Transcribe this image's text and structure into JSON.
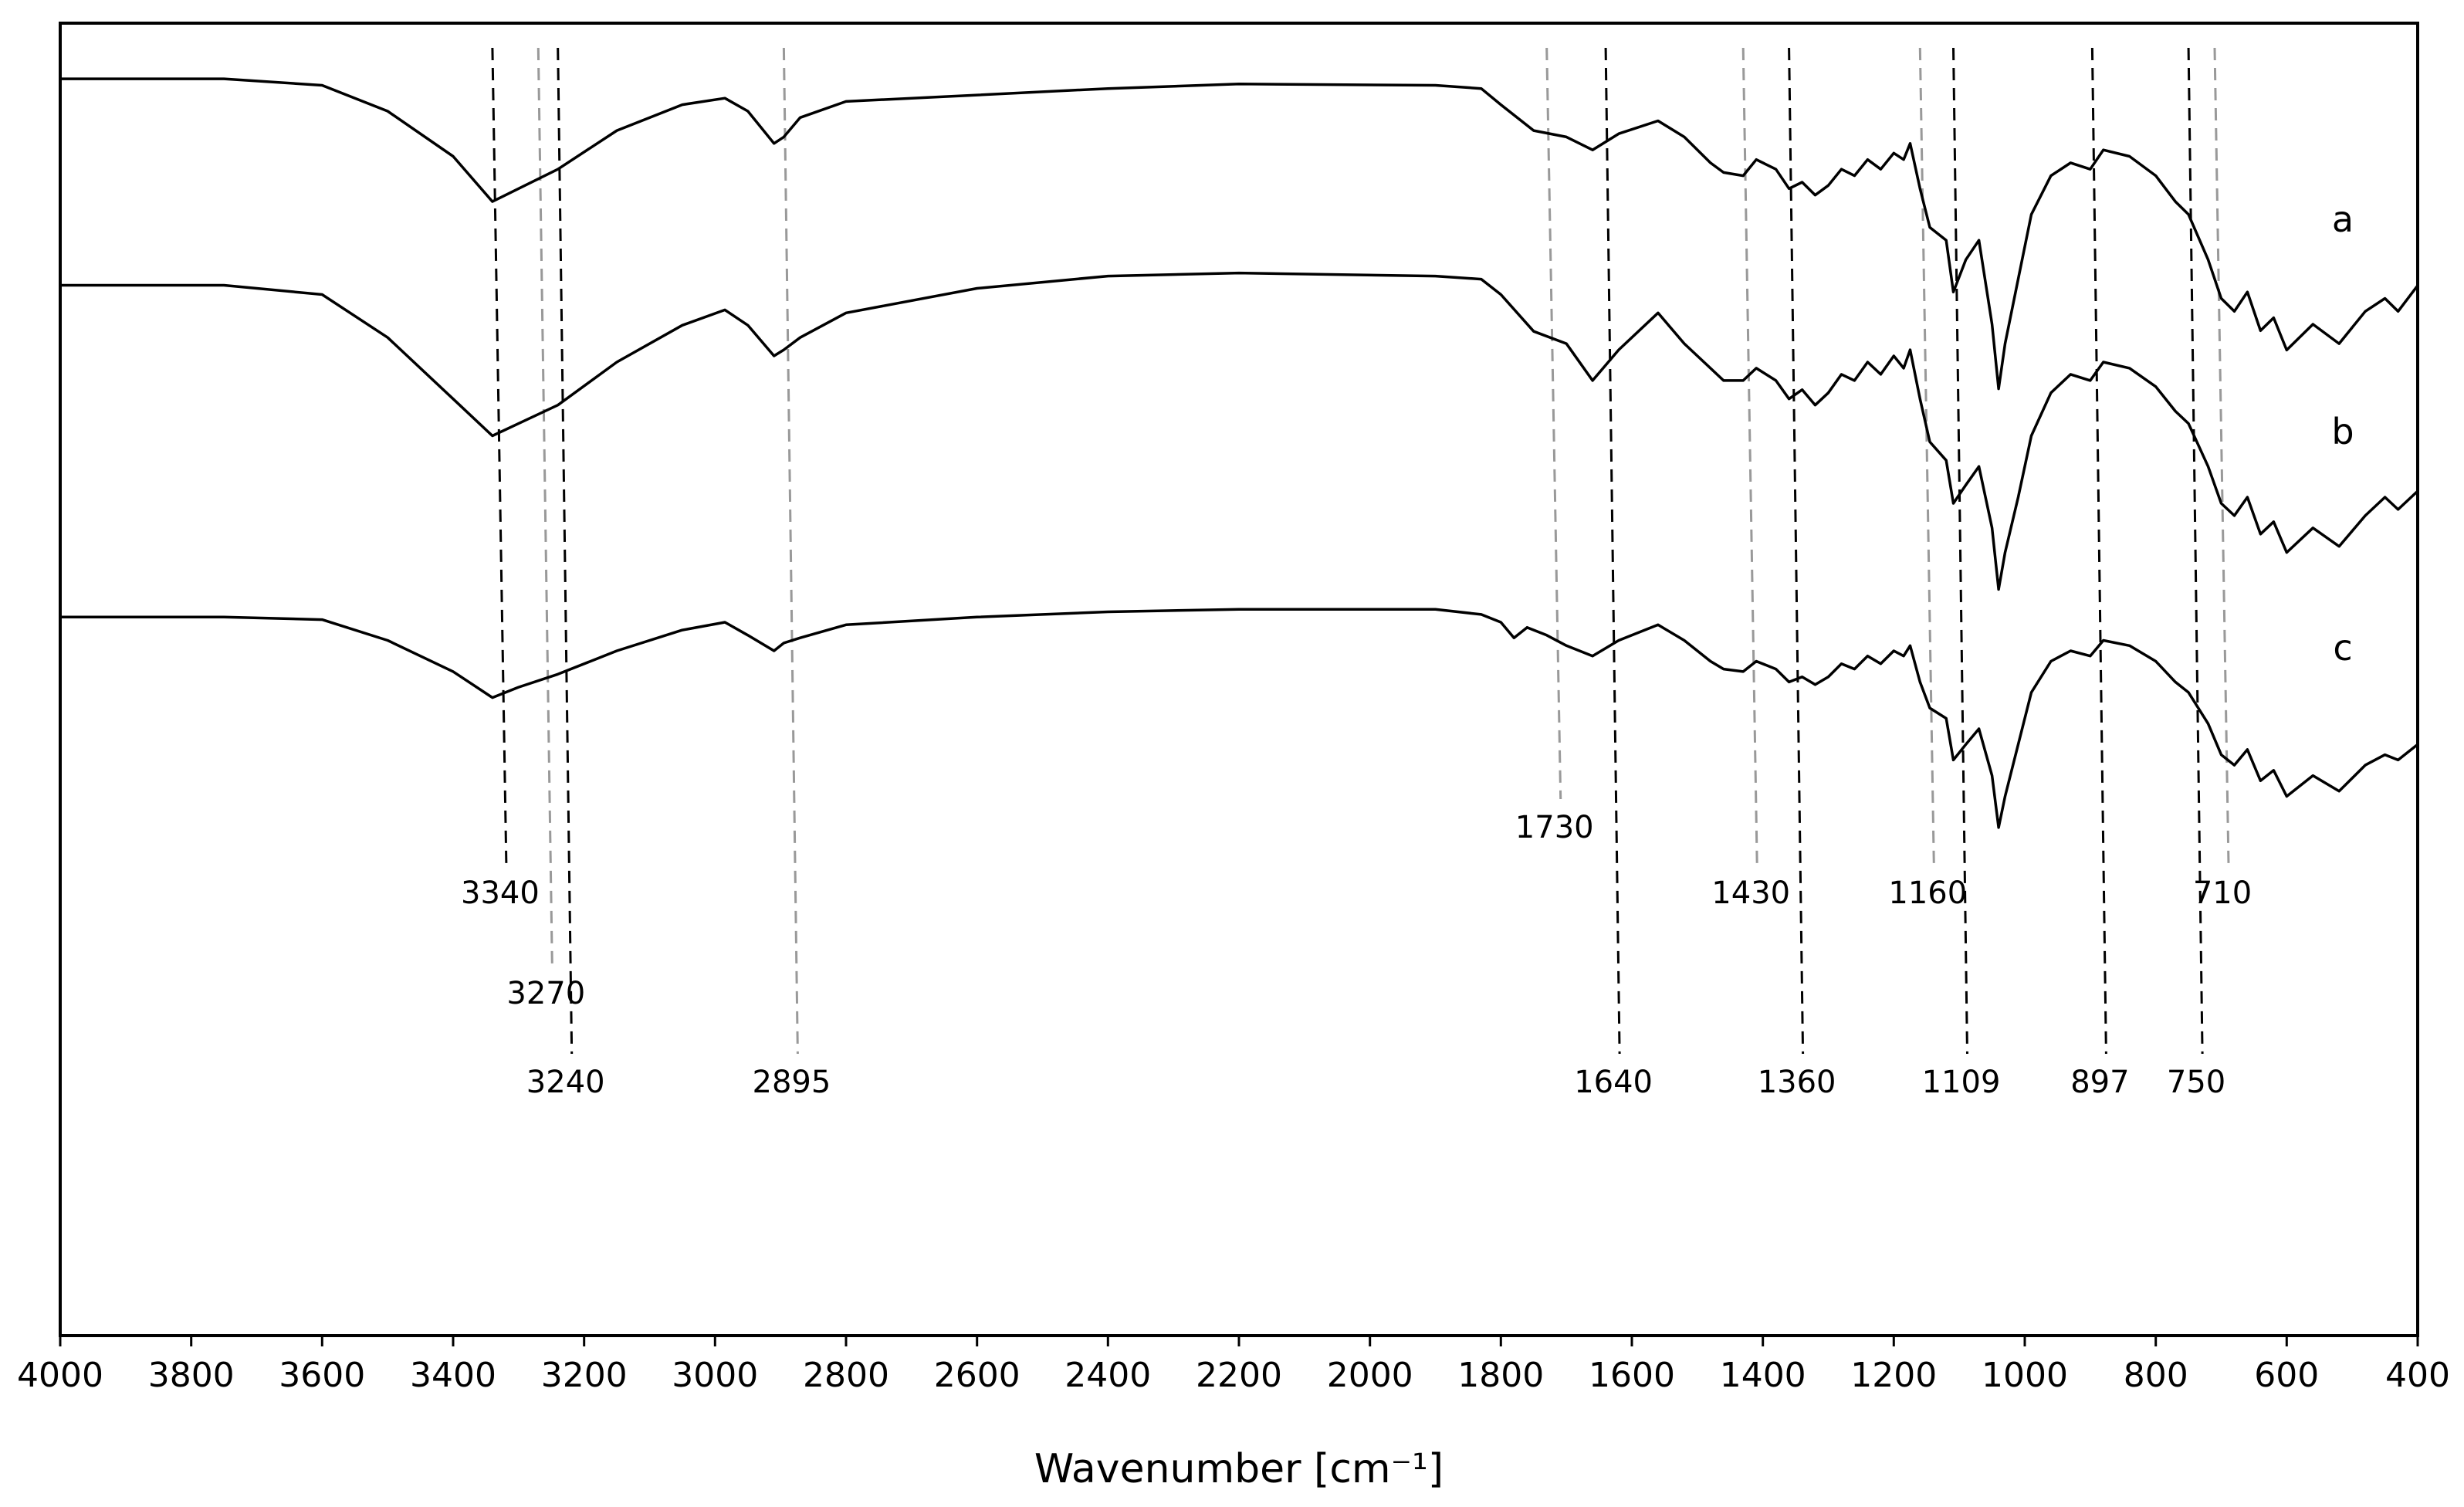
{
  "chart_data": {
    "type": "line",
    "title": "",
    "xlabel": "Wavenumber [cm⁻¹]",
    "ylabel": "",
    "xlim": [
      4000,
      400
    ],
    "x_reversed": true,
    "x_ticks": [
      4000,
      3800,
      3600,
      3400,
      3200,
      3000,
      2800,
      2600,
      2400,
      2200,
      2000,
      1800,
      1600,
      1400,
      1200,
      1000,
      800,
      600,
      400
    ],
    "y_ticks": [],
    "grid": false,
    "legend": "none",
    "series": [
      {
        "name": "a",
        "x": [
          4000,
          3750,
          3600,
          3500,
          3400,
          3340,
          3300,
          3240,
          3150,
          3050,
          2985,
          2950,
          2910,
          2895,
          2870,
          2800,
          2600,
          2400,
          2200,
          1900,
          1830,
          1800,
          1750,
          1700,
          1660,
          1620,
          1560,
          1520,
          1480,
          1460,
          1430,
          1410,
          1380,
          1360,
          1340,
          1320,
          1300,
          1280,
          1260,
          1240,
          1220,
          1200,
          1185,
          1175,
          1160,
          1145,
          1120,
          1109,
          1090,
          1070,
          1050,
          1040,
          1030,
          1010,
          990,
          960,
          930,
          900,
          880,
          840,
          800,
          770,
          750,
          720,
          700,
          680,
          660,
          640,
          620,
          600,
          560,
          520,
          480,
          450,
          430,
          400
        ],
        "y": [
          93.0,
          93.0,
          92.0,
          88.0,
          81.0,
          74.0,
          76.0,
          79.0,
          85.0,
          89.0,
          90.0,
          88.0,
          83.0,
          84.0,
          87.0,
          89.5,
          90.5,
          91.5,
          92.2,
          92.0,
          91.5,
          89.0,
          85.0,
          84.0,
          82.0,
          84.5,
          86.5,
          84.0,
          80.0,
          78.5,
          78.0,
          80.5,
          79.0,
          76.0,
          77.0,
          75.0,
          76.5,
          79.0,
          78.0,
          80.5,
          79.0,
          81.5,
          80.5,
          83.0,
          76.0,
          70.0,
          68.0,
          60.0,
          65.0,
          68.0,
          55.0,
          45.0,
          52.0,
          62.0,
          72.0,
          78.0,
          80.0,
          79.0,
          82.0,
          81.0,
          78.0,
          74.0,
          72.0,
          65.0,
          59.0,
          57.0,
          60.0,
          54.0,
          56.0,
          51.0,
          55.0,
          52.0,
          57.0,
          59.0,
          57.0,
          61.0
        ]
      },
      {
        "name": "b",
        "x": [
          4000,
          3750,
          3600,
          3500,
          3400,
          3340,
          3300,
          3240,
          3150,
          3050,
          2985,
          2950,
          2910,
          2895,
          2870,
          2800,
          2600,
          2400,
          2200,
          1900,
          1830,
          1800,
          1750,
          1700,
          1660,
          1620,
          1560,
          1520,
          1480,
          1460,
          1430,
          1410,
          1380,
          1360,
          1340,
          1320,
          1300,
          1280,
          1260,
          1240,
          1220,
          1200,
          1185,
          1175,
          1160,
          1145,
          1120,
          1109,
          1090,
          1070,
          1050,
          1040,
          1030,
          1010,
          990,
          960,
          930,
          900,
          880,
          840,
          800,
          770,
          750,
          720,
          700,
          680,
          660,
          640,
          620,
          600,
          560,
          520,
          480,
          450,
          430,
          400
        ],
        "y": [
          80.5,
          80.5,
          79.0,
          72.0,
          62.0,
          56.0,
          58.0,
          61.0,
          68.0,
          74.0,
          76.5,
          74.0,
          69.0,
          70.0,
          72.0,
          76.0,
          80.0,
          82.0,
          82.5,
          82.0,
          81.5,
          79.0,
          73.0,
          71.0,
          65.0,
          70.0,
          76.0,
          71.0,
          67.0,
          65.0,
          65.0,
          67.0,
          65.0,
          62.0,
          63.5,
          61.0,
          63.0,
          66.0,
          65.0,
          68.0,
          66.0,
          69.0,
          67.0,
          70.0,
          62.0,
          55.0,
          52.0,
          45.0,
          48.0,
          51.0,
          41.0,
          31.0,
          37.0,
          46.0,
          56.0,
          63.0,
          66.0,
          65.0,
          68.0,
          67.0,
          64.0,
          60.0,
          58.0,
          51.0,
          45.0,
          43.0,
          46.0,
          40.0,
          42.0,
          37.0,
          41.0,
          38.0,
          43.0,
          46.0,
          44.0,
          47.0
        ]
      },
      {
        "name": "c",
        "x": [
          4000,
          3750,
          3600,
          3500,
          3400,
          3340,
          3300,
          3240,
          3150,
          3050,
          2985,
          2950,
          2910,
          2895,
          2870,
          2800,
          2600,
          2400,
          2200,
          1900,
          1830,
          1800,
          1780,
          1760,
          1730,
          1700,
          1660,
          1620,
          1560,
          1520,
          1480,
          1460,
          1430,
          1410,
          1380,
          1360,
          1340,
          1320,
          1300,
          1280,
          1260,
          1240,
          1220,
          1200,
          1185,
          1175,
          1160,
          1145,
          1120,
          1109,
          1090,
          1070,
          1050,
          1040,
          1030,
          1010,
          990,
          960,
          930,
          900,
          880,
          840,
          800,
          770,
          750,
          720,
          700,
          680,
          660,
          640,
          620,
          600,
          560,
          520,
          480,
          450,
          430,
          400
        ],
        "y": [
          62.5,
          62.5,
          62.0,
          58.0,
          52.0,
          47.0,
          49.0,
          51.5,
          56.0,
          60.0,
          61.5,
          59.0,
          56.0,
          57.5,
          58.5,
          61.0,
          62.5,
          63.5,
          64.0,
          64.0,
          63.0,
          61.5,
          58.5,
          60.5,
          59.0,
          57.0,
          55.0,
          58.0,
          61.0,
          58.0,
          54.0,
          52.5,
          52.0,
          54.0,
          52.5,
          50.0,
          51.0,
          49.5,
          51.0,
          53.5,
          52.5,
          55.0,
          53.5,
          56.0,
          55.0,
          57.0,
          50.0,
          45.0,
          43.0,
          35.0,
          38.0,
          41.0,
          32.0,
          22.0,
          28.0,
          38.0,
          48.0,
          54.0,
          56.0,
          55.0,
          58.0,
          57.0,
          54.0,
          50.0,
          48.0,
          42.0,
          36.0,
          34.0,
          37.0,
          31.0,
          33.0,
          28.0,
          32.0,
          29.0,
          34.0,
          36.0,
          35.0,
          38.0
        ]
      }
    ],
    "series_labels": [
      "a",
      "b",
      "c"
    ],
    "markers": [
      {
        "label": "3340",
        "x": 3340,
        "style": "black",
        "label_row": 1
      },
      {
        "label": "3270",
        "x": 3270,
        "style": "gray",
        "label_row": 2
      },
      {
        "label": "3240",
        "x": 3240,
        "style": "black",
        "label_row": 3
      },
      {
        "label": "2895",
        "x": 2895,
        "style": "gray",
        "label_row": 3
      },
      {
        "label": "1730",
        "x": 1730,
        "style": "gray",
        "label_row": 0
      },
      {
        "label": "1640",
        "x": 1640,
        "style": "black",
        "label_row": 3
      },
      {
        "label": "1430",
        "x": 1430,
        "style": "gray",
        "label_row": 1
      },
      {
        "label": "1360",
        "x": 1360,
        "style": "black",
        "label_row": 3
      },
      {
        "label": "1160",
        "x": 1160,
        "style": "gray",
        "label_row": 1
      },
      {
        "label": "1109",
        "x": 1109,
        "style": "black",
        "label_row": 3
      },
      {
        "label": "897",
        "x": 897,
        "style": "black",
        "label_row": 3
      },
      {
        "label": "750",
        "x": 750,
        "style": "black",
        "label_row": 3
      },
      {
        "label": "710",
        "x": 710,
        "style": "gray",
        "label_row": 1
      }
    ],
    "colors": {
      "line": "#000000",
      "marker_black": "#000000",
      "marker_gray": "#999999"
    }
  }
}
